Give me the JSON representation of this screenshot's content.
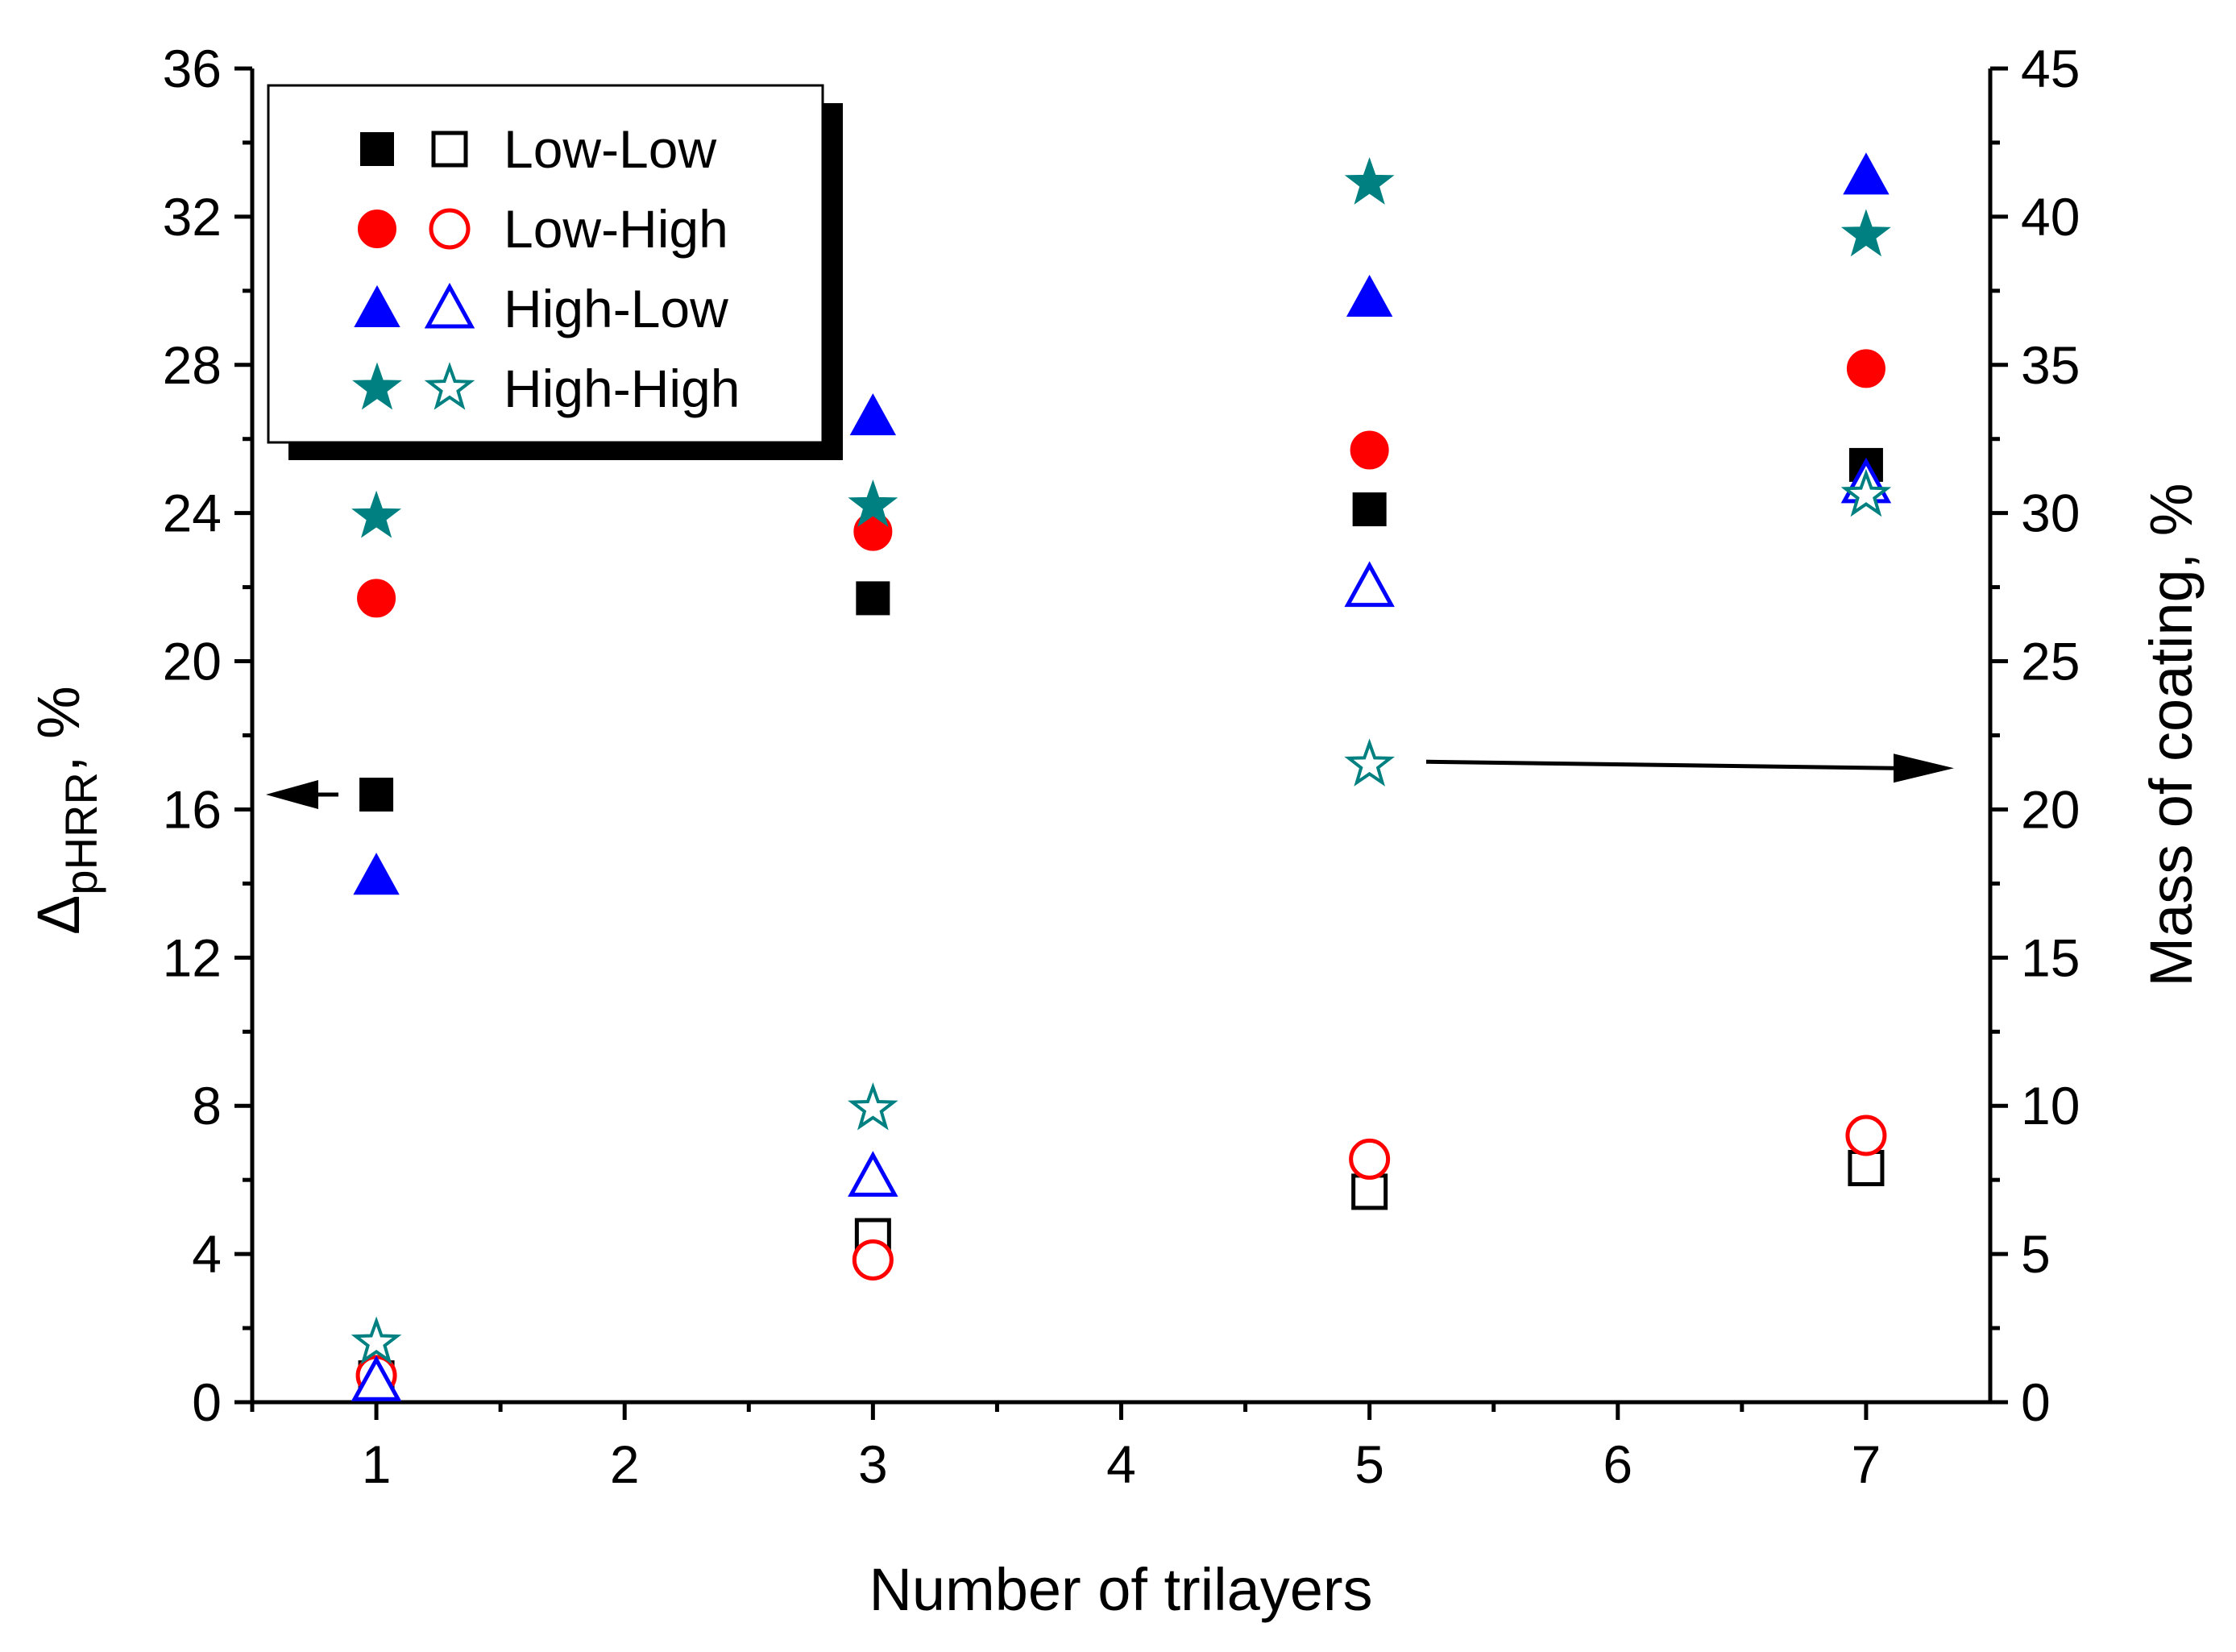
{
  "chart_data": {
    "type": "scatter",
    "xlabel": "Number of trilayers",
    "ylabel_left": {
      "symbol": "Δ",
      "subscript": "pHRR",
      "suffix": ", %"
    },
    "ylabel_right": "Mass of coating, %",
    "xlim": [
      0.5,
      7.5
    ],
    "xticks": [
      "1",
      "2",
      "3",
      "4",
      "5",
      "6",
      "7"
    ],
    "ylim_left": [
      0,
      36
    ],
    "yticks_left": [
      "0",
      "4",
      "8",
      "12",
      "16",
      "20",
      "24",
      "28",
      "32",
      "36"
    ],
    "ylim_right": [
      0,
      45
    ],
    "yticks_right": [
      "0",
      "5",
      "10",
      "15",
      "20",
      "25",
      "30",
      "35",
      "40",
      "45"
    ],
    "legend_position": "top-left",
    "annotations": [
      {
        "type": "arrow",
        "points_to": "left axis",
        "at_value": 16.4
      },
      {
        "type": "arrow",
        "points_to": "right axis",
        "at_value": 21.5
      }
    ],
    "series": [
      {
        "name": "Low-Low",
        "color": "#000000",
        "marker": "square",
        "x": [
          1,
          3,
          5,
          7
        ],
        "delta_phrr": [
          16.4,
          21.7,
          24.1,
          25.3
        ],
        "mass_of_coating": [
          0.8,
          5.6,
          7.1,
          7.9
        ]
      },
      {
        "name": "Low-High",
        "color": "#ff0000",
        "marker": "circle",
        "x": [
          1,
          3,
          5,
          7
        ],
        "delta_phrr": [
          21.7,
          23.5,
          25.7,
          27.9
        ],
        "mass_of_coating": [
          0.9,
          4.8,
          8.2,
          9.0
        ]
      },
      {
        "name": "High-Low",
        "color": "#0000ff",
        "marker": "triangle",
        "x": [
          1,
          3,
          5,
          7
        ],
        "delta_phrr": [
          14.2,
          26.6,
          29.8,
          33.1
        ],
        "mass_of_coating": [
          0.7,
          7.6,
          27.5,
          31.0
        ]
      },
      {
        "name": "High-High",
        "color": "#008080",
        "marker": "star",
        "x": [
          1,
          3,
          5,
          7
        ],
        "delta_phrr": [
          23.9,
          24.2,
          32.9,
          31.5
        ],
        "mass_of_coating": [
          2.0,
          9.9,
          21.5,
          30.6
        ]
      }
    ]
  }
}
